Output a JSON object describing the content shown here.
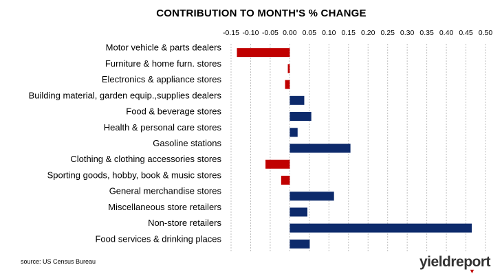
{
  "chart_data": {
    "type": "bar",
    "orientation": "horizontal",
    "title": "CONTRIBUTION TO MONTH'S % CHANGE",
    "xlim": [
      -0.15,
      0.5
    ],
    "x_ticks": [
      "-0.15",
      "-0.10",
      "-0.05",
      "0.00",
      "0.05",
      "0.10",
      "0.15",
      "0.20",
      "0.25",
      "0.30",
      "0.35",
      "0.40",
      "0.45",
      "0.50"
    ],
    "x_axis_position": "top",
    "grid": "vertical dashed",
    "categories": [
      "Motor vehicle & parts dealers",
      "Furniture & home furn. stores",
      "Electronics & appliance stores",
      "Building material, garden equip.,supplies dealers",
      "Food & beverage stores",
      "Health & personal care stores",
      "Gasoline stations",
      "Clothing & clothing accessories stores",
      "Sporting goods, hobby, book & music stores",
      "General merchandise stores",
      "Miscellaneous store retailers",
      "Non-store retailers",
      "Food services & drinking places"
    ],
    "values": [
      -0.135,
      -0.005,
      -0.012,
      0.037,
      0.055,
      0.02,
      0.155,
      -0.062,
      -0.022,
      0.113,
      0.045,
      0.465,
      0.051
    ],
    "colors": {
      "positive": "#0d2a6b",
      "negative": "#c00000",
      "grid": "#bfbfbf"
    }
  },
  "source": "source: US Census Bureau",
  "logo": {
    "text": "yieldreport",
    "icon": "red-triangle-marker"
  }
}
